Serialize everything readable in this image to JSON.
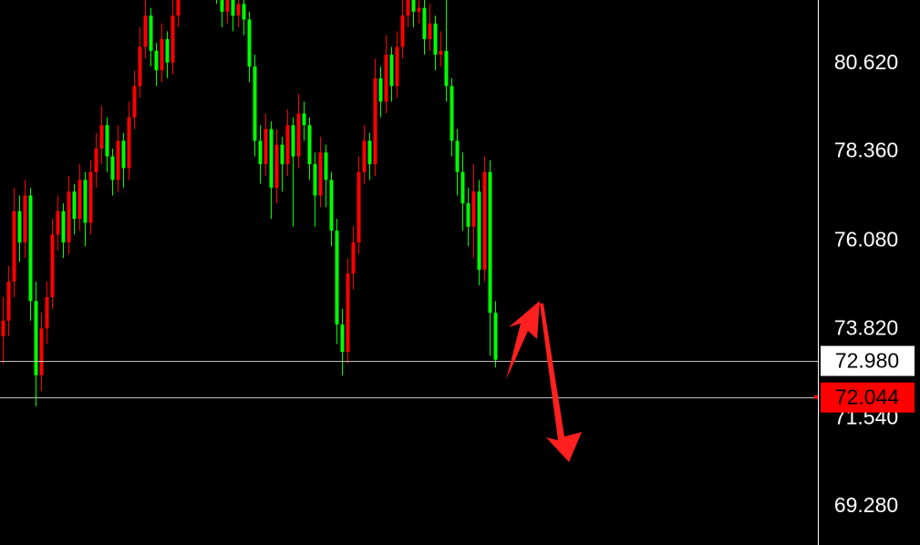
{
  "chart_data": {
    "type": "candlestick",
    "title": "",
    "xlabel": "",
    "ylabel": "",
    "ylim": [
      68.26,
      82.2
    ],
    "grid": false,
    "background": "#000000",
    "up_color": "#ff0000",
    "down_color": "#00ff00",
    "y_ticks": [
      "80.620",
      "78.360",
      "76.080",
      "73.820",
      "71.540",
      "69.280"
    ],
    "ohlc": [
      [
        73.6,
        74.6,
        72.9,
        74.0
      ],
      [
        74.0,
        75.4,
        73.6,
        75.0
      ],
      [
        75.0,
        77.4,
        74.6,
        76.8
      ],
      [
        76.8,
        77.2,
        75.5,
        76.0
      ],
      [
        76.0,
        77.6,
        75.6,
        77.2
      ],
      [
        77.2,
        77.4,
        74.0,
        74.5
      ],
      [
        74.5,
        75.0,
        71.8,
        72.6
      ],
      [
        72.6,
        74.2,
        72.2,
        73.8
      ],
      [
        73.8,
        75.0,
        73.4,
        74.6
      ],
      [
        74.6,
        76.6,
        74.3,
        76.2
      ],
      [
        76.2,
        77.2,
        75.8,
        76.8
      ],
      [
        76.8,
        77.0,
        75.6,
        76.0
      ],
      [
        76.0,
        77.7,
        75.7,
        77.3
      ],
      [
        77.3,
        77.5,
        76.2,
        76.6
      ],
      [
        76.6,
        78.0,
        76.3,
        77.6
      ],
      [
        77.6,
        77.8,
        75.9,
        76.5
      ],
      [
        76.5,
        78.1,
        76.2,
        77.8
      ],
      [
        77.8,
        78.8,
        77.4,
        78.4
      ],
      [
        78.4,
        79.5,
        78.0,
        79.0
      ],
      [
        79.0,
        79.2,
        77.8,
        78.2
      ],
      [
        78.2,
        78.4,
        77.2,
        77.6
      ],
      [
        77.6,
        79.0,
        77.3,
        78.6
      ],
      [
        78.6,
        78.8,
        77.4,
        77.9
      ],
      [
        77.9,
        79.6,
        77.6,
        79.2
      ],
      [
        79.2,
        80.4,
        78.9,
        80.0
      ],
      [
        80.0,
        81.5,
        79.7,
        81.0
      ],
      [
        81.0,
        82.3,
        80.7,
        81.8
      ],
      [
        81.8,
        82.0,
        80.5,
        80.9
      ],
      [
        80.9,
        81.1,
        80.0,
        80.4
      ],
      [
        80.4,
        81.6,
        80.1,
        81.2
      ],
      [
        81.2,
        81.4,
        80.2,
        80.6
      ],
      [
        80.6,
        82.2,
        80.3,
        81.8
      ],
      [
        81.8,
        83.0,
        81.5,
        82.6
      ],
      [
        82.6,
        83.4,
        82.2,
        83.0
      ],
      [
        83.0,
        83.7,
        82.7,
        83.3
      ],
      [
        83.3,
        83.5,
        82.6,
        83.0
      ],
      [
        83.0,
        83.8,
        82.7,
        83.4
      ],
      [
        83.4,
        83.6,
        82.5,
        82.9
      ],
      [
        82.9,
        83.5,
        82.6,
        83.1
      ],
      [
        83.1,
        83.3,
        82.1,
        82.5
      ],
      [
        82.5,
        82.8,
        81.5,
        81.9
      ],
      [
        81.9,
        82.7,
        81.6,
        82.3
      ],
      [
        82.3,
        82.5,
        81.4,
        81.8
      ],
      [
        81.8,
        82.5,
        81.5,
        82.1
      ],
      [
        82.1,
        82.4,
        81.3,
        81.7
      ],
      [
        81.7,
        81.9,
        80.1,
        80.5
      ],
      [
        80.5,
        80.8,
        78.2,
        78.6
      ],
      [
        78.6,
        79.0,
        77.5,
        78.0
      ],
      [
        78.0,
        79.3,
        77.7,
        78.9
      ],
      [
        78.9,
        79.1,
        76.6,
        77.4
      ],
      [
        77.4,
        78.9,
        77.0,
        78.5
      ],
      [
        78.5,
        78.7,
        77.3,
        78.0
      ],
      [
        78.0,
        79.4,
        77.7,
        79.0
      ],
      [
        79.0,
        79.2,
        76.4,
        78.2
      ],
      [
        78.2,
        79.8,
        77.9,
        79.3
      ],
      [
        79.3,
        79.6,
        78.6,
        79.0
      ],
      [
        79.0,
        79.2,
        77.6,
        78.0
      ],
      [
        78.0,
        78.3,
        76.4,
        77.2
      ],
      [
        77.2,
        78.7,
        76.9,
        78.3
      ],
      [
        78.3,
        78.5,
        76.9,
        77.6
      ],
      [
        77.6,
        77.8,
        75.9,
        76.3
      ],
      [
        76.3,
        76.6,
        73.4,
        73.9
      ],
      [
        73.9,
        74.3,
        72.6,
        73.2
      ],
      [
        73.2,
        75.6,
        72.9,
        75.2
      ],
      [
        75.2,
        76.4,
        74.8,
        76.0
      ],
      [
        76.0,
        78.2,
        75.7,
        77.8
      ],
      [
        77.8,
        79.0,
        77.5,
        78.6
      ],
      [
        78.6,
        78.8,
        77.6,
        78.0
      ],
      [
        78.0,
        80.7,
        77.7,
        80.2
      ],
      [
        80.2,
        80.5,
        79.2,
        79.6
      ],
      [
        79.6,
        81.3,
        79.3,
        80.8
      ],
      [
        80.8,
        81.0,
        79.6,
        80.0
      ],
      [
        80.0,
        81.4,
        79.7,
        81.0
      ],
      [
        81.0,
        82.3,
        80.7,
        81.8
      ],
      [
        81.8,
        82.9,
        81.5,
        82.4
      ],
      [
        82.4,
        82.6,
        81.5,
        81.9
      ],
      [
        81.9,
        82.5,
        81.6,
        82.0
      ],
      [
        82.0,
        82.2,
        80.8,
        81.2
      ],
      [
        81.2,
        82.1,
        80.9,
        81.6
      ],
      [
        81.6,
        81.8,
        80.4,
        80.8
      ],
      [
        80.8,
        81.4,
        80.5,
        80.9
      ],
      [
        80.9,
        82.3,
        79.6,
        80.0
      ],
      [
        80.0,
        80.2,
        78.2,
        78.6
      ],
      [
        78.6,
        78.9,
        77.2,
        77.8
      ],
      [
        77.8,
        78.3,
        76.3,
        77.0
      ],
      [
        77.0,
        77.4,
        75.9,
        76.4
      ],
      [
        76.4,
        78.0,
        75.6,
        77.3
      ],
      [
        77.3,
        77.6,
        74.9,
        75.3
      ],
      [
        75.3,
        78.2,
        75.0,
        77.8
      ],
      [
        77.8,
        78.1,
        73.1,
        74.2
      ],
      [
        74.2,
        74.5,
        72.8,
        73.0
      ]
    ],
    "price_lines": [
      {
        "label": "72.980",
        "value": 72.98,
        "line_color": "#c0c0c0",
        "tag_bg": "#ffffff",
        "tag_fg": "#000000"
      },
      {
        "label": "72.044",
        "value": 72.044,
        "line_color": "#c0c0c0",
        "tag_bg": "#ff0000",
        "tag_fg": "#000000"
      }
    ],
    "annotations": [
      {
        "type": "arrow-up",
        "color": "#ff2020"
      },
      {
        "type": "arrow-down",
        "color": "#ff2020"
      }
    ]
  }
}
